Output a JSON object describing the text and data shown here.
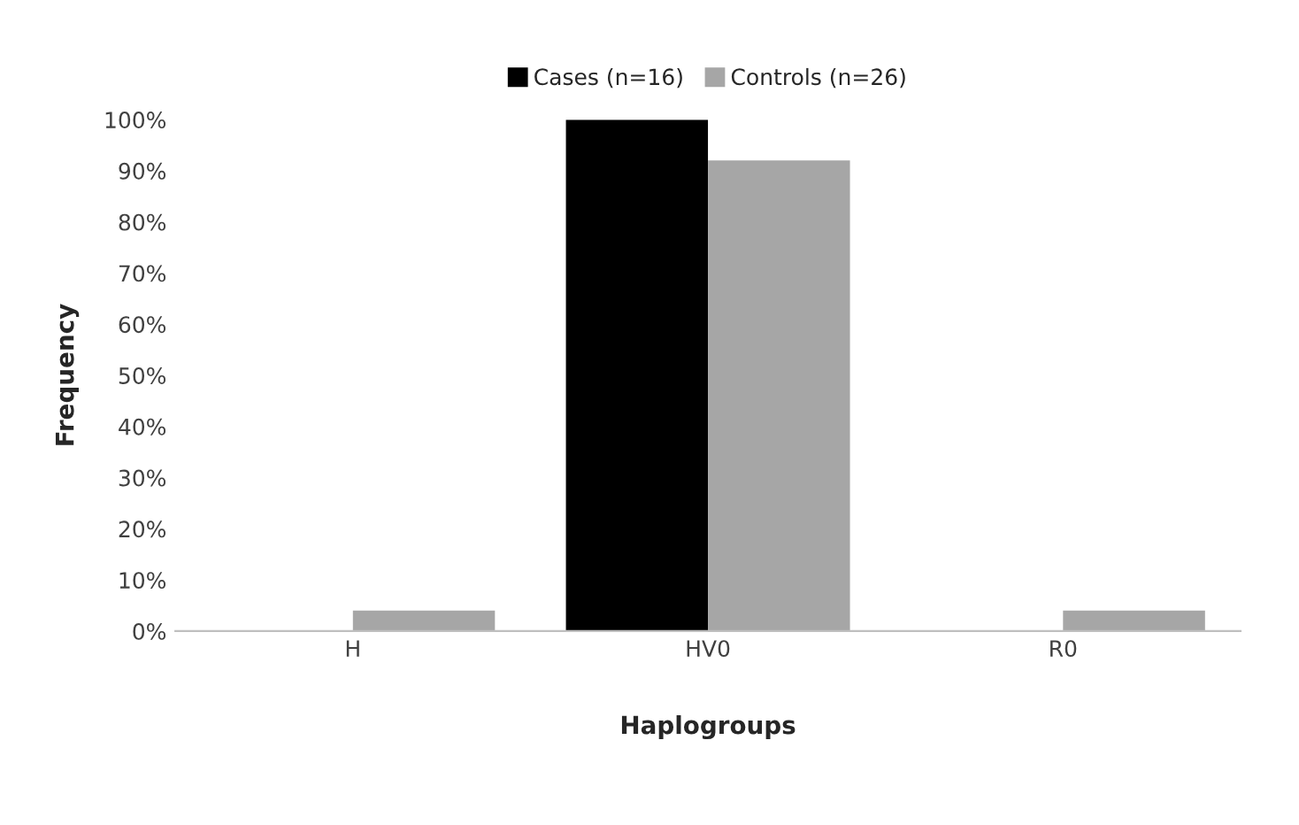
{
  "chart_data": {
    "type": "bar",
    "xlabel": "Haplogroups",
    "ylabel": "Frequency",
    "categories": [
      "H",
      "HV0",
      "R0"
    ],
    "series": [
      {
        "name": "Cases (n=16)",
        "color": "#000000",
        "values": [
          0,
          100,
          0
        ]
      },
      {
        "name": "Controls (n=26)",
        "color": "#a6a6a6",
        "values": [
          4,
          92,
          4
        ]
      }
    ],
    "ylim": [
      0,
      100
    ],
    "yticks": [
      {
        "value": 0,
        "label": "0%"
      },
      {
        "value": 10,
        "label": "10%"
      },
      {
        "value": 20,
        "label": "20%"
      },
      {
        "value": 30,
        "label": "30%"
      },
      {
        "value": 40,
        "label": "40%"
      },
      {
        "value": 50,
        "label": "50%"
      },
      {
        "value": 60,
        "label": "60%"
      },
      {
        "value": 70,
        "label": "70%"
      },
      {
        "value": 80,
        "label": "80%"
      },
      {
        "value": 90,
        "label": "90%"
      },
      {
        "value": 100,
        "label": "100%"
      }
    ],
    "grid": false,
    "legend": "top"
  }
}
